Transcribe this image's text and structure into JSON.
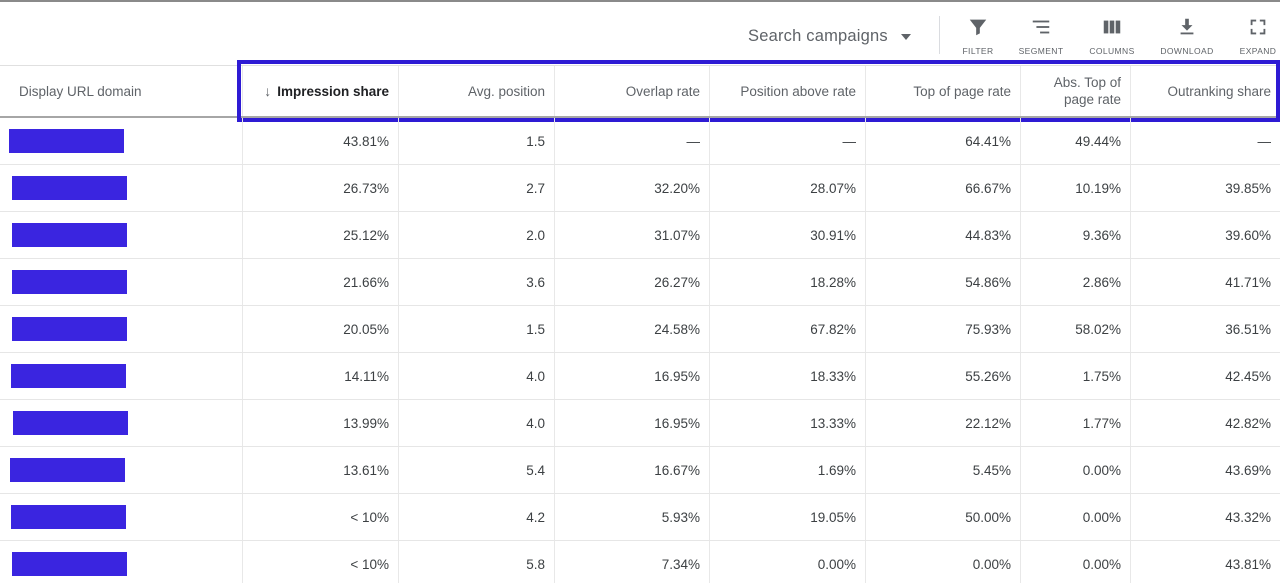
{
  "toolbar": {
    "campaign_selector": "Search campaigns",
    "tools": [
      {
        "label": "FILTER",
        "icon": "filter-icon"
      },
      {
        "label": "SEGMENT",
        "icon": "segment-icon"
      },
      {
        "label": "COLUMNS",
        "icon": "columns-icon"
      },
      {
        "label": "DOWNLOAD",
        "icon": "download-icon"
      },
      {
        "label": "EXPAND",
        "icon": "expand-icon"
      }
    ]
  },
  "colors": {
    "highlight": "#2e1bd4",
    "redaction": "#3a25e0"
  },
  "table": {
    "sort_arrow": "↓",
    "headers": [
      "Display URL domain",
      "Impression share",
      "Avg. position",
      "Overlap rate",
      "Position above rate",
      "Top of page rate",
      "Abs. Top of page rate",
      "Outranking share"
    ],
    "header_abs_top_line1": "Abs. Top of",
    "header_abs_top_line2": "page rate",
    "rows": [
      [
        "43.81%",
        "1.5",
        "—",
        "—",
        "64.41%",
        "49.44%",
        "—"
      ],
      [
        "26.73%",
        "2.7",
        "32.20%",
        "28.07%",
        "66.67%",
        "10.19%",
        "39.85%"
      ],
      [
        "25.12%",
        "2.0",
        "31.07%",
        "30.91%",
        "44.83%",
        "9.36%",
        "39.60%"
      ],
      [
        "21.66%",
        "3.6",
        "26.27%",
        "18.28%",
        "54.86%",
        "2.86%",
        "41.71%"
      ],
      [
        "20.05%",
        "1.5",
        "24.58%",
        "67.82%",
        "75.93%",
        "58.02%",
        "36.51%"
      ],
      [
        "14.11%",
        "4.0",
        "16.95%",
        "18.33%",
        "55.26%",
        "1.75%",
        "42.45%"
      ],
      [
        "13.99%",
        "4.0",
        "16.95%",
        "13.33%",
        "22.12%",
        "1.77%",
        "42.82%"
      ],
      [
        "13.61%",
        "5.4",
        "16.67%",
        "1.69%",
        "5.45%",
        "0.00%",
        "43.69%"
      ],
      [
        "< 10%",
        "4.2",
        "5.93%",
        "19.05%",
        "50.00%",
        "0.00%",
        "43.32%"
      ],
      [
        "< 10%",
        "5.8",
        "7.34%",
        "0.00%",
        "0.00%",
        "0.00%",
        "43.81%"
      ]
    ]
  }
}
